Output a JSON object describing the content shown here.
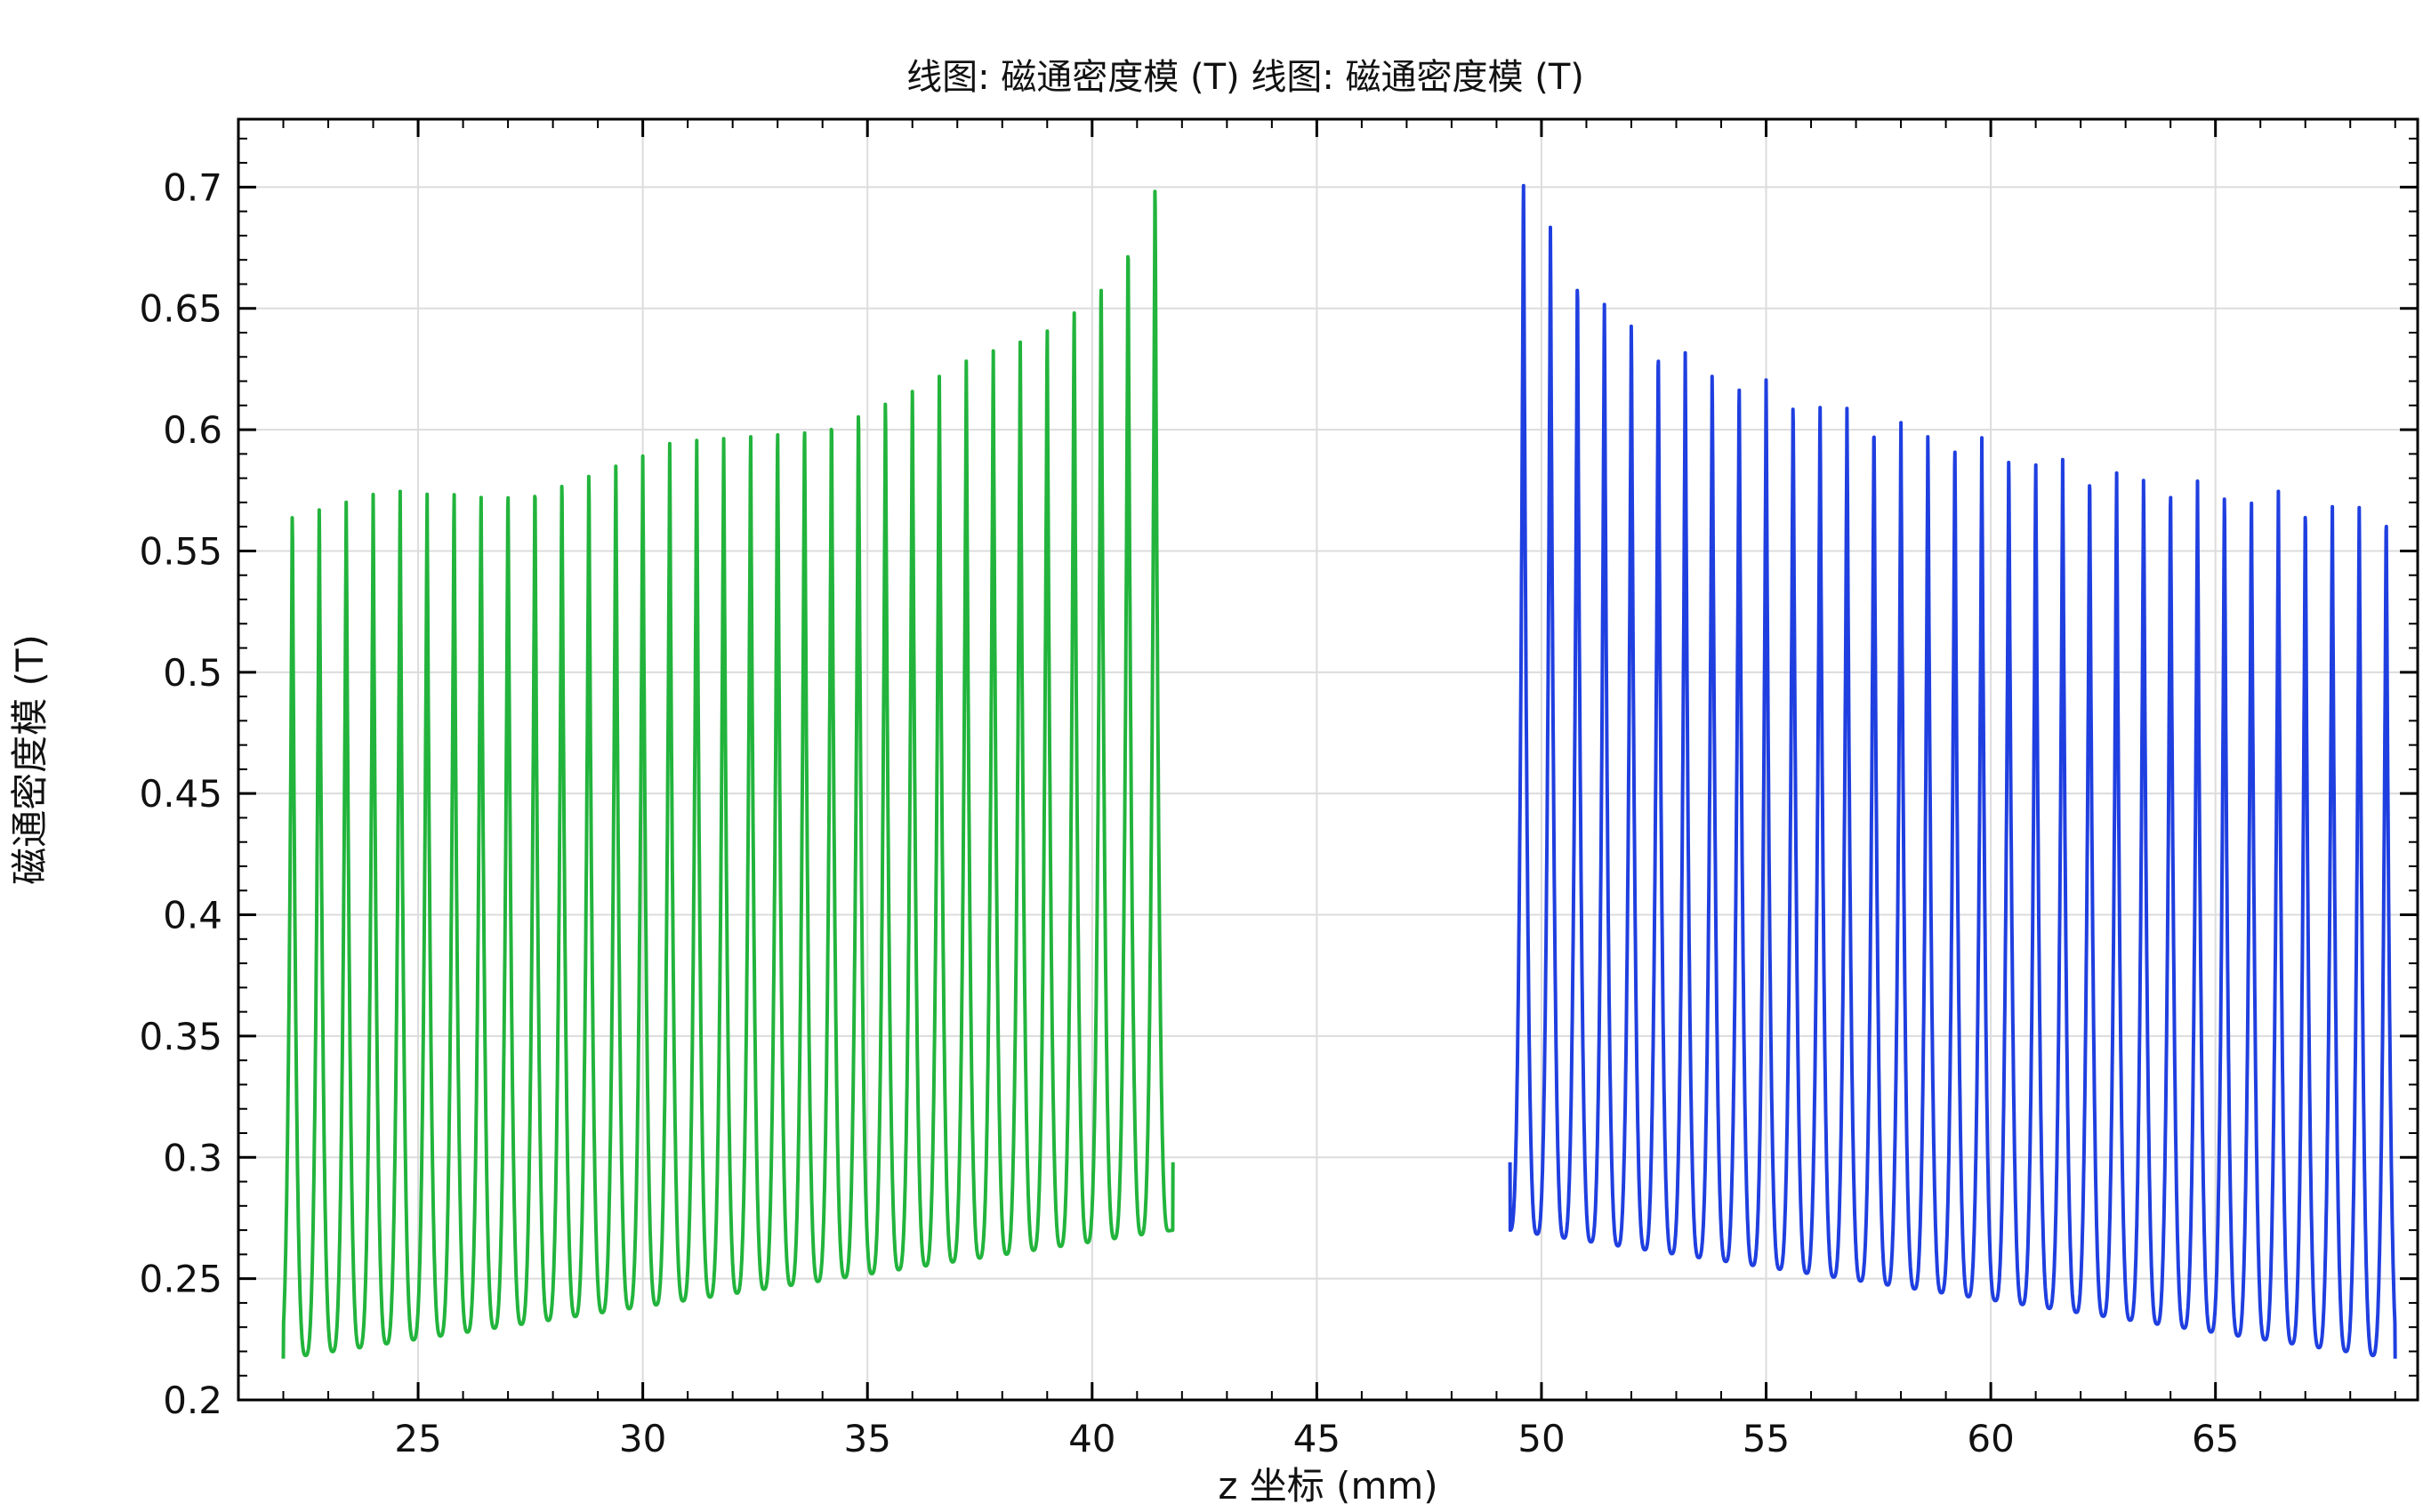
{
  "chart_data": {
    "type": "line",
    "title": "线图: 磁通密度模 (T)  线图: 磁通密度模 (T)",
    "xlabel": "z 坐标 (mm)",
    "ylabel": "磁通密度模 (T)",
    "xlim": [
      21.0,
      69.5
    ],
    "ylim": [
      0.2,
      0.728
    ],
    "xticks": [
      "25",
      "30",
      "35",
      "40",
      "45",
      "50",
      "55",
      "60",
      "65"
    ],
    "yticks": [
      "0.2",
      "0.25",
      "0.3",
      "0.35",
      "0.4",
      "0.45",
      "0.5",
      "0.55",
      "0.6",
      "0.65",
      "0.7"
    ],
    "grid": true,
    "legend": "none",
    "series": [
      {
        "color": "#22b43c",
        "x_start": 22.0,
        "x_end": 41.8,
        "period": 0.615,
        "peak_x": [
          22.2,
          22.8,
          23.4,
          24.0,
          24.6,
          25.2,
          25.8,
          26.4,
          27.0,
          27.6,
          28.2,
          28.8,
          29.4,
          30.0,
          30.6,
          31.2,
          31.8,
          32.4,
          33.0,
          33.6,
          34.2,
          34.8,
          35.4,
          36.0,
          36.6,
          37.2,
          37.8,
          38.4,
          39.0,
          39.6,
          40.2,
          40.8,
          41.4
        ],
        "peak_y": [
          0.571,
          0.572,
          0.573,
          0.574,
          0.576,
          0.577,
          0.579,
          0.58,
          0.582,
          0.584,
          0.586,
          0.588,
          0.59,
          0.592,
          0.595,
          0.597,
          0.6,
          0.603,
          0.606,
          0.609,
          0.612,
          0.615,
          0.618,
          0.621,
          0.625,
          0.629,
          0.634,
          0.64,
          0.647,
          0.657,
          0.669,
          0.685,
          0.71
        ],
        "min_y_start": 0.217,
        "min_y_end": 0.27,
        "start_y": 0.217,
        "end_y": 0.298
      },
      {
        "color": "#1f3fe0",
        "x_start": 49.3,
        "x_end": 69.0,
        "period": 0.615,
        "peak_x": [
          49.6,
          50.2,
          50.8,
          51.4,
          52.0,
          52.6,
          53.2,
          53.8,
          54.4,
          55.0,
          55.6,
          56.2,
          56.8,
          57.4,
          58.0,
          58.6,
          59.2,
          59.8,
          60.4,
          61.0,
          61.6,
          62.2,
          62.8,
          63.4,
          64.0,
          64.6,
          65.2,
          65.8,
          66.4,
          67.0,
          67.6,
          68.2,
          68.8
        ],
        "peak_y": [
          0.71,
          0.685,
          0.669,
          0.657,
          0.647,
          0.64,
          0.634,
          0.629,
          0.625,
          0.621,
          0.618,
          0.615,
          0.612,
          0.609,
          0.606,
          0.603,
          0.6,
          0.597,
          0.595,
          0.592,
          0.59,
          0.588,
          0.586,
          0.584,
          0.582,
          0.58,
          0.579,
          0.577,
          0.576,
          0.574,
          0.573,
          0.572,
          0.571
        ],
        "min_y_start": 0.27,
        "min_y_end": 0.217,
        "start_y": 0.298,
        "end_y": 0.217
      }
    ]
  }
}
